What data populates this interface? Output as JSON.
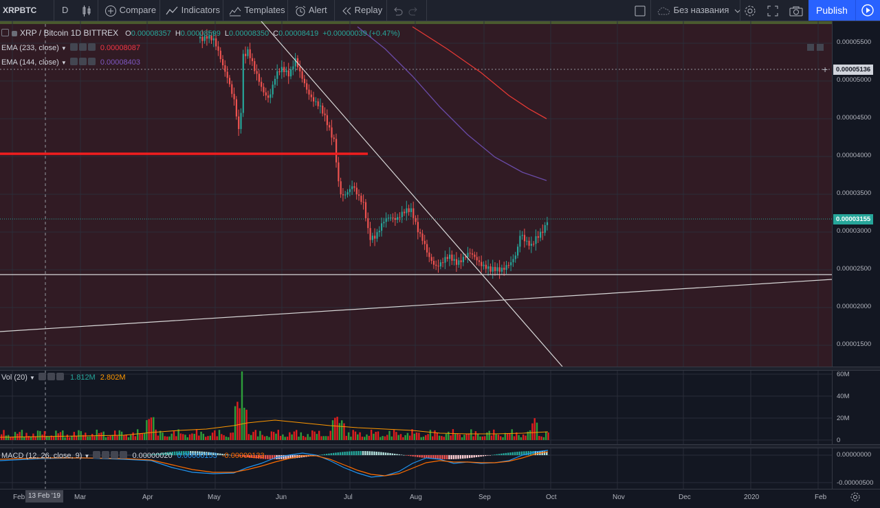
{
  "toolbar": {
    "symbol": "XRPBTC",
    "interval": "D",
    "compare": "Compare",
    "indicators": "Indicators",
    "templates": "Templates",
    "alert": "Alert",
    "replay": "Replay",
    "layout_name": "Без названия",
    "publish": "Publish"
  },
  "legend": {
    "title": "XRP / Bitcoin  1D  BITTREX",
    "ohlc": {
      "o_label": "O",
      "o": "0.00008357",
      "h_label": "H",
      "h": "0.00008599",
      "l_label": "L",
      "l": "0.00008350",
      "c_label": "C",
      "c": "0.00008419",
      "change": "+0.00000039 (+0.47%)"
    },
    "ema233": {
      "name": "EMA (233, close)",
      "value": "0.00008087",
      "color": "#f23645"
    },
    "ema144": {
      "name": "EMA (144, close)",
      "value": "0.00008403",
      "color": "#7e57c2"
    }
  },
  "price_axis": [
    "0.00005500",
    "0.00005000",
    "0.00004500",
    "0.00004000",
    "0.00003500",
    "0.00003000",
    "0.00002500",
    "0.00002000",
    "0.00001500"
  ],
  "crosshair_price": "0.00005136",
  "last_price": "0.00003155",
  "volume": {
    "name": "Vol (20)",
    "value1": "1.812M",
    "value1_color": "#26a69a",
    "value2": "2.802M",
    "value2_color": "#ff9800",
    "axis": [
      "60M",
      "40M",
      "20M",
      "0"
    ]
  },
  "macd": {
    "name": "MACD (12, 26, close, 9)",
    "v1": "0.00000020",
    "v2": "0.00000153",
    "v3": "-0.00000133",
    "axis": [
      "0.00000000",
      "-0.00000500"
    ]
  },
  "time_axis": [
    "Feb",
    "Mar",
    "Apr",
    "May",
    "Jun",
    "Jul",
    "Aug",
    "Sep",
    "Oct",
    "Nov",
    "Dec",
    "2020",
    "Feb"
  ],
  "crosshair_date": "13 Feb '19",
  "colors": {
    "up": "#26a69a",
    "down": "#ef5350",
    "background": "#131722",
    "accent": "#2962ff"
  }
}
